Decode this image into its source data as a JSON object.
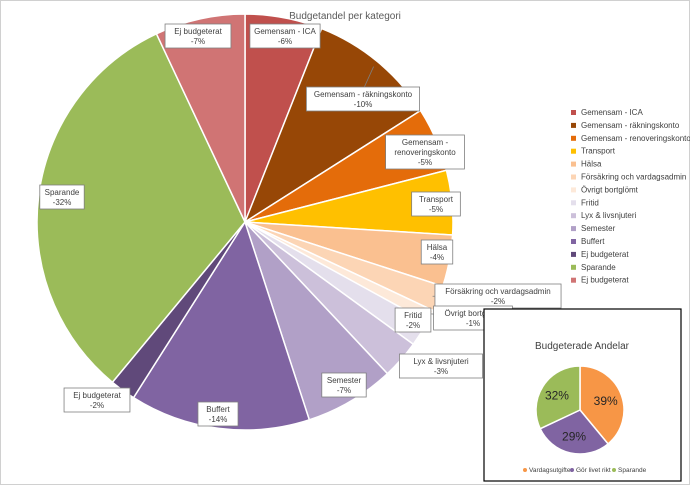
{
  "chart_data": [
    {
      "type": "pie",
      "title": "Budgetandel per kategori",
      "legend_position": "right",
      "slices": [
        {
          "label": "Gemensam - ICA",
          "value": 6,
          "data_label": "-6%",
          "color": "#c0504d"
        },
        {
          "label": "Gemensam - räkningskonto",
          "value": 10,
          "data_label": "-10%",
          "color": "#974706"
        },
        {
          "label": "Gemensam - renoveringskonto",
          "value": 5,
          "data_label": "-5%",
          "color": "#e46c0a"
        },
        {
          "label": "Transport",
          "value": 5,
          "data_label": "-5%",
          "color": "#ffc000"
        },
        {
          "label": "Hälsa",
          "value": 4,
          "data_label": "-4%",
          "color": "#fac090"
        },
        {
          "label": "Försäkring och vardagsadmin",
          "value": 2,
          "data_label": "-2%",
          "color": "#fcd5b5"
        },
        {
          "label": "Övrigt bortglömt",
          "value": 1,
          "data_label": "-1%",
          "color": "#fde9d9"
        },
        {
          "label": "Fritid",
          "value": 2,
          "data_label": "-2%",
          "color": "#e4dfec"
        },
        {
          "label": "Lyx & livsnjuteri",
          "value": 3,
          "data_label": "-3%",
          "color": "#ccc0da"
        },
        {
          "label": "Semester",
          "value": 7,
          "data_label": "-7%",
          "color": "#b1a0c7"
        },
        {
          "label": "Buffert",
          "value": 14,
          "data_label": "-14%",
          "color": "#8064a2"
        },
        {
          "label": "Ej budgeterat",
          "value": 2,
          "data_label": "-2%",
          "color": "#60497a"
        },
        {
          "label": "Sparande",
          "value": 32,
          "data_label": "-32%",
          "color": "#9bbb59"
        },
        {
          "label": "Ej budgeterat",
          "value": 7,
          "data_label": "-7%",
          "color": "#d07474"
        }
      ]
    },
    {
      "type": "pie",
      "title": "Budgeterade Andelar",
      "legend_position": "bottom",
      "slices": [
        {
          "label": "Vardagsutgifter",
          "value": 39,
          "data_label": "39%",
          "color": "#f79646"
        },
        {
          "label": "Gör livet rikt",
          "value": 29,
          "data_label": "29%",
          "color": "#8064a2"
        },
        {
          "label": "Sparande",
          "value": 32,
          "data_label": "32%",
          "color": "#9bbb59"
        }
      ]
    }
  ]
}
